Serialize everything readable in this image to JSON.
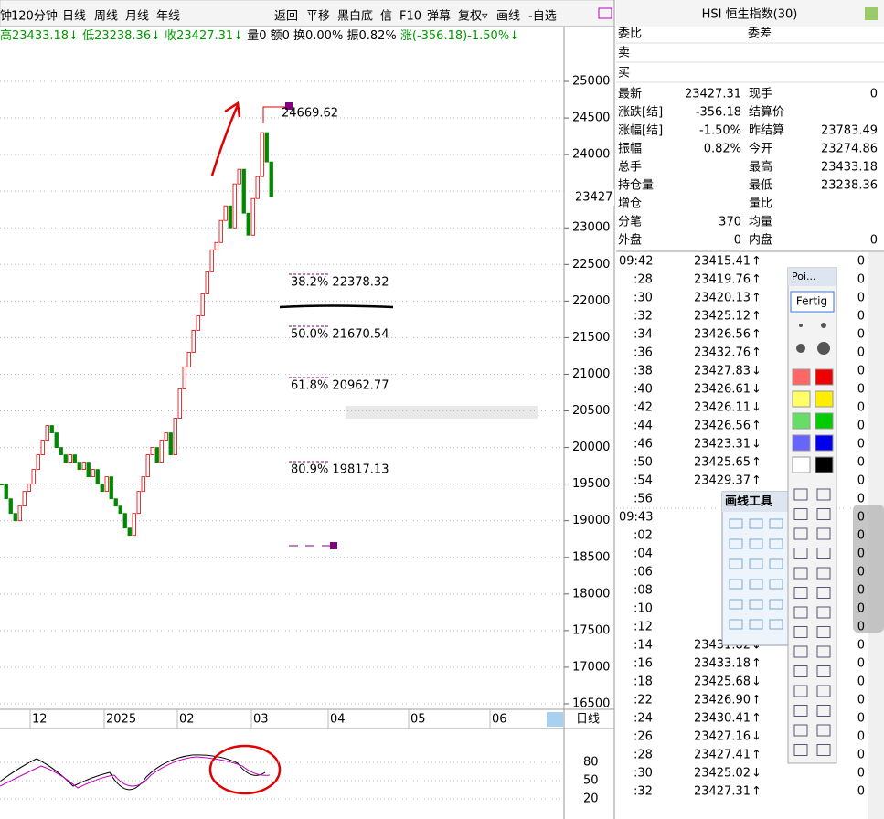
{
  "toolbar": {
    "left": [
      {
        "text": "钟"
      },
      {
        "text": "120分钟"
      },
      {
        "text": "日线",
        "color": "#e07000"
      },
      {
        "text": "周线"
      },
      {
        "text": "月线"
      },
      {
        "text": "年线"
      }
    ],
    "right": [
      {
        "text": "返回"
      },
      {
        "text": "平移",
        "color": "#e07000"
      },
      {
        "text": "黑白底"
      },
      {
        "text": "信"
      },
      {
        "text": "F10"
      },
      {
        "text": "弹幕"
      },
      {
        "text": "复权▿"
      },
      {
        "text": "画线",
        "color": "#e07000"
      },
      {
        "text": "-自选"
      }
    ]
  },
  "info_line": [
    {
      "text": "高23433.18↓",
      "color": "#009900"
    },
    {
      "text": "低23238.36↓",
      "color": "#009900"
    },
    {
      "text": "收23427.31↓",
      "color": "#009900"
    },
    {
      "text": "量0",
      "color": "#000"
    },
    {
      "text": "额0",
      "color": "#000"
    },
    {
      "text": "换0.00%",
      "color": "#000"
    },
    {
      "text": "振0.82%",
      "color": "#000"
    },
    {
      "text": "涨(-356.18)-1.50%↓",
      "color": "#009900"
    }
  ],
  "chart": {
    "type": "candlestick",
    "ylim": [
      16500,
      25000
    ],
    "yticks": [
      25000,
      24500,
      24000,
      23000,
      22500,
      22000,
      21500,
      21000,
      20500,
      20000,
      19500,
      19000,
      18500,
      18000,
      17500,
      17000,
      16500
    ],
    "grid_step": 500,
    "closes": [
      19500,
      19300,
      19100,
      19000,
      19200,
      19400,
      19500,
      19700,
      19900,
      20100,
      20300,
      20200,
      20000,
      19900,
      19800,
      19900,
      19800,
      19700,
      19800,
      19600,
      19700,
      19500,
      19400,
      19600,
      19300,
      19200,
      19100,
      18900,
      18800,
      19100,
      19400,
      19600,
      19900,
      20000,
      19800,
      20100,
      20200,
      19900,
      20400,
      20800,
      21100,
      21300,
      21600,
      21800,
      22100,
      22400,
      22700,
      22800,
      23100,
      23300,
      23000,
      23600,
      23800,
      23200,
      22900,
      23400,
      23700,
      24300,
      23900,
      23427.31
    ],
    "candle_colors": {
      "up": "#e00000",
      "down": "#008800"
    },
    "peak_label": "24669.62",
    "current_label": "23427",
    "fib_levels": [
      "38.2% 22378.32",
      "50.0% 21670.54",
      "61.8% 20962.77",
      "80.9% 19817.13"
    ],
    "x_labels": [
      "12",
      "2025",
      "02",
      "03",
      "04",
      "05",
      "06"
    ],
    "period_label": "日线",
    "osc_ticks": [
      80,
      50,
      20
    ]
  },
  "panel": {
    "title": "HSI 恒生指数(30)",
    "top": [
      {
        "l1": "委比",
        "l2": "委差"
      },
      {
        "l1": "卖"
      },
      {
        "l1": "买"
      }
    ],
    "quote": [
      {
        "l1": "最新",
        "v1": "23427.31",
        "c1": "#009900",
        "l2": "现手",
        "v2": "0",
        "c2": "#000"
      },
      {
        "l1": "涨跌[结]",
        "v1": "-356.18",
        "c1": "#009900",
        "l2": "结算价"
      },
      {
        "l1": "涨幅[结]",
        "v1": "-1.50%",
        "c1": "#009900",
        "l2": "昨结算",
        "v2": "23783.49",
        "c2": "#000"
      },
      {
        "l1": "振幅",
        "v1": "0.82%",
        "c1": "#000",
        "l2": "今开",
        "v2": "23274.86",
        "c2": "#009900"
      },
      {
        "l1": "总手",
        "l2": "最高",
        "v2": "23433.18",
        "c2": "#009900"
      },
      {
        "l1": "持仓量",
        "l2": "最低",
        "v2": "23238.36",
        "c2": "#009900"
      },
      {
        "l1": "增仓",
        "l2": "量比"
      },
      {
        "l1": "分笔",
        "v1": "370",
        "c1": "#000",
        "l2": "均量"
      },
      {
        "l1": "外盘",
        "v1": "0",
        "c1": "#e00000",
        "l2": "内盘",
        "v2": "0",
        "c2": "#009900"
      }
    ],
    "ticks": [
      {
        "time": "09:42",
        "price": "23415.41",
        "dir": "↑",
        "vol": "0"
      },
      {
        "time": ":28",
        "price": "23419.76",
        "dir": "↑",
        "vol": "0"
      },
      {
        "time": ":30",
        "price": "23420.13",
        "dir": "↑",
        "vol": "0"
      },
      {
        "time": ":32",
        "price": "23425.12",
        "dir": "↑",
        "vol": "0"
      },
      {
        "time": ":34",
        "price": "23426.56",
        "dir": "↑",
        "vol": "0"
      },
      {
        "time": ":36",
        "price": "23432.76",
        "dir": "↑",
        "vol": "0"
      },
      {
        "time": ":38",
        "price": "23427.83",
        "dir": "↓",
        "vol": "0"
      },
      {
        "time": ":40",
        "price": "23426.61",
        "dir": "↓",
        "vol": "0"
      },
      {
        "time": ":42",
        "price": "23426.11",
        "dir": "↓",
        "vol": "0"
      },
      {
        "time": ":44",
        "price": "23426.56",
        "dir": "↑",
        "vol": "0"
      },
      {
        "time": ":46",
        "price": "23423.31",
        "dir": "↓",
        "vol": "0"
      },
      {
        "time": ":50",
        "price": "23425.65",
        "dir": "↑",
        "vol": "0"
      },
      {
        "time": ":54",
        "price": "23429.37",
        "dir": "↑",
        "vol": "0"
      },
      {
        "time": ":56",
        "price": "234",
        "vol": "0"
      },
      {
        "time": "09:43",
        "price": "234",
        "vol": "0"
      },
      {
        "time": ":02",
        "price": "234",
        "vol": "0"
      },
      {
        "time": ":04",
        "price": "234",
        "vol": "0"
      },
      {
        "time": ":06",
        "price": "234",
        "vol": "0"
      },
      {
        "time": ":08",
        "price": "234",
        "vol": "0"
      },
      {
        "time": ":10",
        "price": "234",
        "vol": "0"
      },
      {
        "time": ":12",
        "price": "234",
        "vol": "0"
      },
      {
        "time": ":14",
        "price": "23431.82",
        "dir": "↓",
        "vol": "0"
      },
      {
        "time": ":16",
        "price": "23433.18",
        "dir": "↑",
        "vol": "0"
      },
      {
        "time": ":18",
        "price": "23425.68",
        "dir": "↓",
        "vol": "0"
      },
      {
        "time": ":22",
        "price": "23426.90",
        "dir": "↑",
        "vol": "0"
      },
      {
        "time": ":24",
        "price": "23430.41",
        "dir": "↑",
        "vol": "0"
      },
      {
        "time": ":26",
        "price": "23427.16",
        "dir": "↓",
        "vol": "0"
      },
      {
        "time": ":28",
        "price": "23427.41",
        "dir": "↑",
        "vol": "0"
      },
      {
        "time": ":30",
        "price": "23425.02",
        "dir": "↓",
        "vol": "0"
      },
      {
        "time": ":32",
        "price": "23427.31",
        "dir": "↑",
        "vol": "0"
      }
    ]
  },
  "draw_tools": {
    "title": "画线工具"
  },
  "poi_panel": {
    "title": "Poi...",
    "button": "Fertig"
  }
}
